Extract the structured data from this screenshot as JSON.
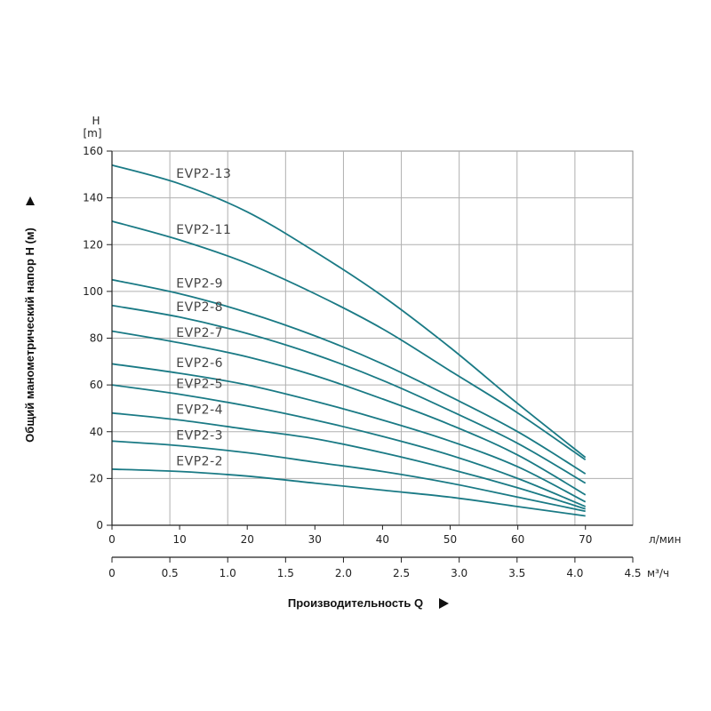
{
  "chart_data": {
    "type": "line",
    "title": "",
    "ylabel": "Общий манометрический напор H (м)",
    "xlabel": "Производительность Q",
    "y_axis_top_label": [
      "H",
      "[m]"
    ],
    "ylim": [
      0,
      160
    ],
    "y_ticks": [
      0,
      20,
      40,
      60,
      80,
      100,
      120,
      140,
      160
    ],
    "x_lpm": {
      "unit": "л/мин",
      "range": [
        0,
        77
      ],
      "ticks": [
        0,
        10,
        20,
        30,
        40,
        50,
        60,
        70
      ]
    },
    "x_m3h": {
      "unit": "м³/ч",
      "range": [
        0,
        4.5
      ],
      "ticks": [
        0,
        0.5,
        1.0,
        1.5,
        2.0,
        2.5,
        3.0,
        3.5,
        4.0,
        4.5
      ],
      "tick_labels": [
        "0",
        "0.5",
        "1.0",
        "1.5",
        "2.0",
        "2.5",
        "3.0",
        "3.5",
        "4.0",
        "4.5"
      ]
    },
    "x_unit": "л/мин",
    "series": [
      {
        "name": "EVP2-13",
        "x": [
          0,
          10,
          20,
          30,
          40,
          50,
          60,
          70
        ],
        "values": [
          154,
          146,
          134,
          117,
          98,
          76,
          52,
          29
        ]
      },
      {
        "name": "EVP2-11",
        "x": [
          0,
          10,
          20,
          30,
          40,
          50,
          60,
          70
        ],
        "values": [
          130,
          122,
          112,
          99,
          84,
          66,
          48,
          28
        ]
      },
      {
        "name": "EVP2-9",
        "x": [
          0,
          10,
          20,
          30,
          40,
          50,
          60,
          70
        ],
        "values": [
          105,
          99,
          91,
          81,
          69,
          55,
          40,
          22
        ]
      },
      {
        "name": "EVP2-8",
        "x": [
          0,
          10,
          20,
          30,
          40,
          50,
          60,
          70
        ],
        "values": [
          94,
          89,
          82,
          73,
          62,
          49,
          35,
          18
        ]
      },
      {
        "name": "EVP2-7",
        "x": [
          0,
          10,
          20,
          30,
          40,
          50,
          60,
          70
        ],
        "values": [
          83,
          78,
          72,
          64,
          54,
          43,
          30,
          13
        ]
      },
      {
        "name": "EVP2-6",
        "x": [
          0,
          10,
          20,
          30,
          40,
          50,
          60,
          70
        ],
        "values": [
          69,
          65,
          60,
          53,
          45,
          36,
          25,
          10
        ]
      },
      {
        "name": "EVP2-5",
        "x": [
          0,
          10,
          20,
          30,
          40,
          50,
          60,
          70
        ],
        "values": [
          60,
          56,
          51,
          45,
          38,
          30,
          20,
          8
        ]
      },
      {
        "name": "EVP2-4",
        "x": [
          0,
          10,
          20,
          30,
          40,
          50,
          60,
          70
        ],
        "values": [
          48,
          45,
          41,
          37,
          31,
          24,
          16,
          7
        ]
      },
      {
        "name": "EVP2-3",
        "x": [
          0,
          10,
          20,
          30,
          40,
          50,
          60,
          70
        ],
        "values": [
          36,
          34,
          31,
          27,
          23,
          18,
          12,
          6
        ]
      },
      {
        "name": "EVP2-2",
        "x": [
          0,
          10,
          20,
          30,
          40,
          50,
          60,
          70
        ],
        "values": [
          24,
          23,
          21,
          18,
          15,
          12,
          8,
          4
        ]
      }
    ],
    "grid": true,
    "colors": {
      "curve": "#1a7a85",
      "grid": "#b0b0b0",
      "axis": "#222222"
    }
  }
}
